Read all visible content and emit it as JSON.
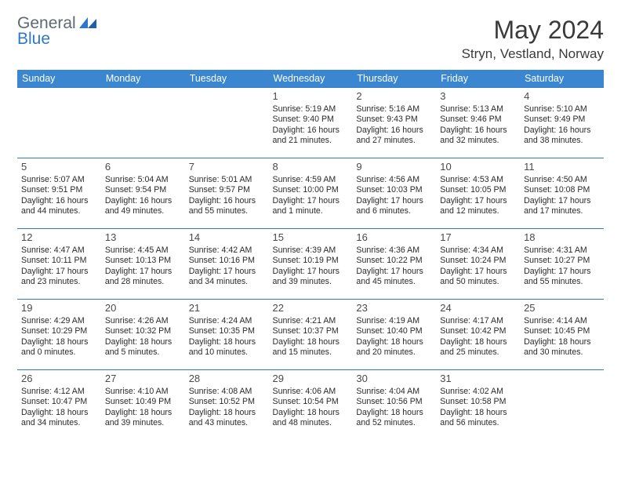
{
  "brand": {
    "word1": "General",
    "word2": "Blue",
    "word1_color": "#5e6a73",
    "word2_color": "#2f78c9",
    "glyph_color": "#2f78c9"
  },
  "title": "May 2024",
  "location": "Stryn, Vestland, Norway",
  "header_bg": "#3a86d0",
  "header_fg": "#ffffff",
  "cell_border": "#2f78c9",
  "weekdays": [
    "Sunday",
    "Monday",
    "Tuesday",
    "Wednesday",
    "Thursday",
    "Friday",
    "Saturday"
  ],
  "weeks": [
    [
      null,
      null,
      null,
      {
        "n": "1",
        "sr": "5:19 AM",
        "ss": "9:40 PM",
        "dl": "16 hours and 21 minutes."
      },
      {
        "n": "2",
        "sr": "5:16 AM",
        "ss": "9:43 PM",
        "dl": "16 hours and 27 minutes."
      },
      {
        "n": "3",
        "sr": "5:13 AM",
        "ss": "9:46 PM",
        "dl": "16 hours and 32 minutes."
      },
      {
        "n": "4",
        "sr": "5:10 AM",
        "ss": "9:49 PM",
        "dl": "16 hours and 38 minutes."
      }
    ],
    [
      {
        "n": "5",
        "sr": "5:07 AM",
        "ss": "9:51 PM",
        "dl": "16 hours and 44 minutes."
      },
      {
        "n": "6",
        "sr": "5:04 AM",
        "ss": "9:54 PM",
        "dl": "16 hours and 49 minutes."
      },
      {
        "n": "7",
        "sr": "5:01 AM",
        "ss": "9:57 PM",
        "dl": "16 hours and 55 minutes."
      },
      {
        "n": "8",
        "sr": "4:59 AM",
        "ss": "10:00 PM",
        "dl": "17 hours and 1 minute."
      },
      {
        "n": "9",
        "sr": "4:56 AM",
        "ss": "10:03 PM",
        "dl": "17 hours and 6 minutes."
      },
      {
        "n": "10",
        "sr": "4:53 AM",
        "ss": "10:05 PM",
        "dl": "17 hours and 12 minutes."
      },
      {
        "n": "11",
        "sr": "4:50 AM",
        "ss": "10:08 PM",
        "dl": "17 hours and 17 minutes."
      }
    ],
    [
      {
        "n": "12",
        "sr": "4:47 AM",
        "ss": "10:11 PM",
        "dl": "17 hours and 23 minutes."
      },
      {
        "n": "13",
        "sr": "4:45 AM",
        "ss": "10:13 PM",
        "dl": "17 hours and 28 minutes."
      },
      {
        "n": "14",
        "sr": "4:42 AM",
        "ss": "10:16 PM",
        "dl": "17 hours and 34 minutes."
      },
      {
        "n": "15",
        "sr": "4:39 AM",
        "ss": "10:19 PM",
        "dl": "17 hours and 39 minutes."
      },
      {
        "n": "16",
        "sr": "4:36 AM",
        "ss": "10:22 PM",
        "dl": "17 hours and 45 minutes."
      },
      {
        "n": "17",
        "sr": "4:34 AM",
        "ss": "10:24 PM",
        "dl": "17 hours and 50 minutes."
      },
      {
        "n": "18",
        "sr": "4:31 AM",
        "ss": "10:27 PM",
        "dl": "17 hours and 55 minutes."
      }
    ],
    [
      {
        "n": "19",
        "sr": "4:29 AM",
        "ss": "10:29 PM",
        "dl": "18 hours and 0 minutes."
      },
      {
        "n": "20",
        "sr": "4:26 AM",
        "ss": "10:32 PM",
        "dl": "18 hours and 5 minutes."
      },
      {
        "n": "21",
        "sr": "4:24 AM",
        "ss": "10:35 PM",
        "dl": "18 hours and 10 minutes."
      },
      {
        "n": "22",
        "sr": "4:21 AM",
        "ss": "10:37 PM",
        "dl": "18 hours and 15 minutes."
      },
      {
        "n": "23",
        "sr": "4:19 AM",
        "ss": "10:40 PM",
        "dl": "18 hours and 20 minutes."
      },
      {
        "n": "24",
        "sr": "4:17 AM",
        "ss": "10:42 PM",
        "dl": "18 hours and 25 minutes."
      },
      {
        "n": "25",
        "sr": "4:14 AM",
        "ss": "10:45 PM",
        "dl": "18 hours and 30 minutes."
      }
    ],
    [
      {
        "n": "26",
        "sr": "4:12 AM",
        "ss": "10:47 PM",
        "dl": "18 hours and 34 minutes."
      },
      {
        "n": "27",
        "sr": "4:10 AM",
        "ss": "10:49 PM",
        "dl": "18 hours and 39 minutes."
      },
      {
        "n": "28",
        "sr": "4:08 AM",
        "ss": "10:52 PM",
        "dl": "18 hours and 43 minutes."
      },
      {
        "n": "29",
        "sr": "4:06 AM",
        "ss": "10:54 PM",
        "dl": "18 hours and 48 minutes."
      },
      {
        "n": "30",
        "sr": "4:04 AM",
        "ss": "10:56 PM",
        "dl": "18 hours and 52 minutes."
      },
      {
        "n": "31",
        "sr": "4:02 AM",
        "ss": "10:58 PM",
        "dl": "18 hours and 56 minutes."
      },
      null
    ]
  ],
  "labels": {
    "sunrise": "Sunrise:",
    "sunset": "Sunset:",
    "daylight": "Daylight:"
  }
}
